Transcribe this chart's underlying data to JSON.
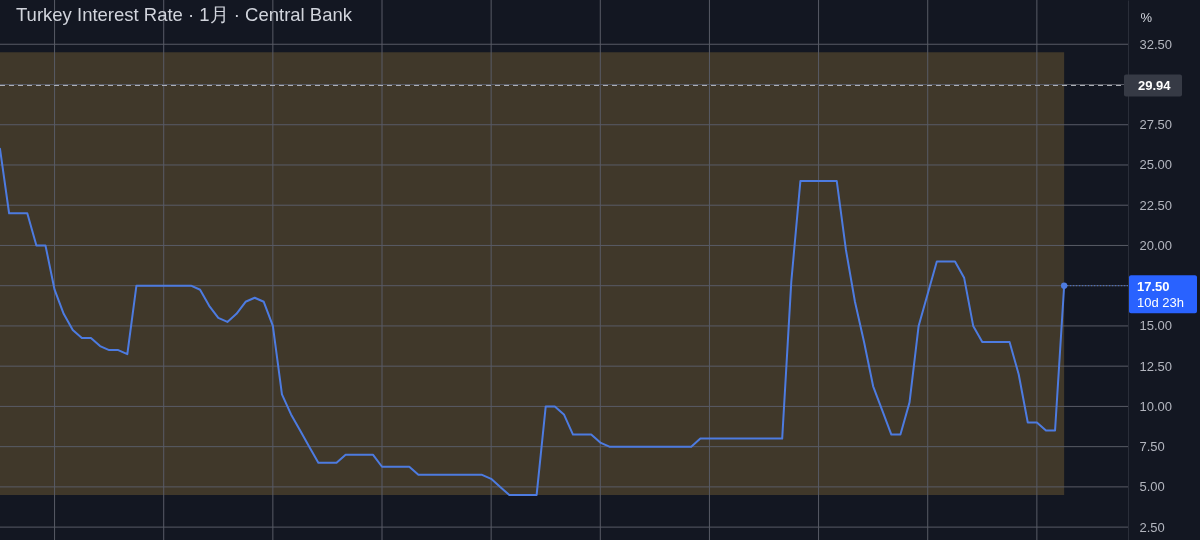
{
  "chart_data": {
    "type": "line",
    "title": "Turkey Interest Rate · 1月 · Central Bank",
    "ylabel": "%",
    "categories": [
      null,
      null,
      null,
      null,
      null,
      null,
      null,
      null,
      null,
      null,
      null,
      null,
      null,
      null,
      null,
      null,
      null,
      null,
      null,
      null,
      null,
      null,
      null,
      null,
      null,
      null,
      null,
      null,
      null,
      null,
      null,
      null,
      null,
      null,
      null,
      null,
      null,
      null,
      null,
      null,
      null,
      null,
      null,
      null,
      null,
      null,
      null,
      null,
      null,
      null,
      null,
      null,
      null,
      null,
      null,
      null,
      null,
      null,
      null,
      null,
      null,
      null,
      null,
      null,
      null,
      null,
      null,
      null,
      null,
      null,
      null,
      null,
      null,
      null,
      null,
      null,
      null,
      null,
      null,
      null,
      null,
      null,
      null,
      null,
      null,
      null,
      null,
      null,
      null,
      null,
      null,
      null,
      null,
      null,
      null,
      null,
      null,
      null,
      null,
      null,
      null,
      null,
      null,
      null,
      null,
      null,
      null,
      null,
      null,
      null,
      null,
      null,
      null,
      null,
      null,
      null,
      null,
      null
    ],
    "series": [
      {
        "color": "#4d7be0",
        "values": [
          26,
          22,
          22,
          22,
          20,
          20,
          17.25,
          15.75,
          14.75,
          14.25,
          14.25,
          13.75,
          13.5,
          13.5,
          13.25,
          17.5,
          17.5,
          17.5,
          17.5,
          17.5,
          17.5,
          17.5,
          17.25,
          16.25,
          15.5,
          15.25,
          15.75,
          16.5,
          16.75,
          16.5,
          15,
          10.75,
          9.5,
          8.5,
          7.5,
          6.5,
          6.5,
          6.5,
          7,
          7,
          7,
          7,
          6.25,
          6.25,
          6.25,
          6.25,
          5.75,
          5.75,
          5.75,
          5.75,
          5.75,
          5.75,
          5.75,
          5.75,
          5.5,
          5,
          4.5,
          4.5,
          4.5,
          4.5,
          10,
          10,
          9.5,
          8.25,
          8.25,
          8.25,
          7.75,
          7.5,
          7.5,
          7.5,
          7.5,
          7.5,
          7.5,
          7.5,
          7.5,
          7.5,
          7.5,
          8,
          8,
          8,
          8,
          8,
          8,
          8,
          8,
          8,
          8,
          17.75,
          24,
          24,
          24,
          24,
          24,
          19.75,
          16.5,
          14,
          11.25,
          9.75,
          8.25,
          8.25,
          10.25,
          15,
          17,
          19,
          19,
          19,
          18,
          15,
          14,
          14,
          14,
          14,
          12,
          9,
          9,
          8.5,
          8.5,
          17.5
        ]
      }
    ],
    "ylim": [
      1.7,
      35.25
    ],
    "yticks": [
      {
        "value": 2.5,
        "label": "2.50"
      },
      {
        "value": 5,
        "label": "5.00"
      },
      {
        "value": 7.5,
        "label": "7.50"
      },
      {
        "value": 10,
        "label": "10.00"
      },
      {
        "value": 12.5,
        "label": "12.50"
      },
      {
        "value": 15,
        "label": "15.00"
      },
      {
        "value": 17.5,
        "label": null
      },
      {
        "value": 20,
        "label": "20.00"
      },
      {
        "value": 22.5,
        "label": "22.50"
      },
      {
        "value": 25,
        "label": "25.00"
      },
      {
        "value": 27.5,
        "label": "27.50"
      },
      {
        "value": 30,
        "label": null
      },
      {
        "value": 32.5,
        "label": "32.50"
      }
    ],
    "grid": true,
    "tick_labels": "y",
    "ref_lines": [
      {
        "axis": "y",
        "value": 29.94,
        "label": "29.94",
        "color": "#b2b5be",
        "line_style": "dashed"
      }
    ],
    "bands": [
      {
        "axis": "y",
        "from": 4.5,
        "to": 32,
        "color": "#40382a"
      }
    ],
    "annotations": [
      "17.50",
      "10d 23h"
    ]
  }
}
